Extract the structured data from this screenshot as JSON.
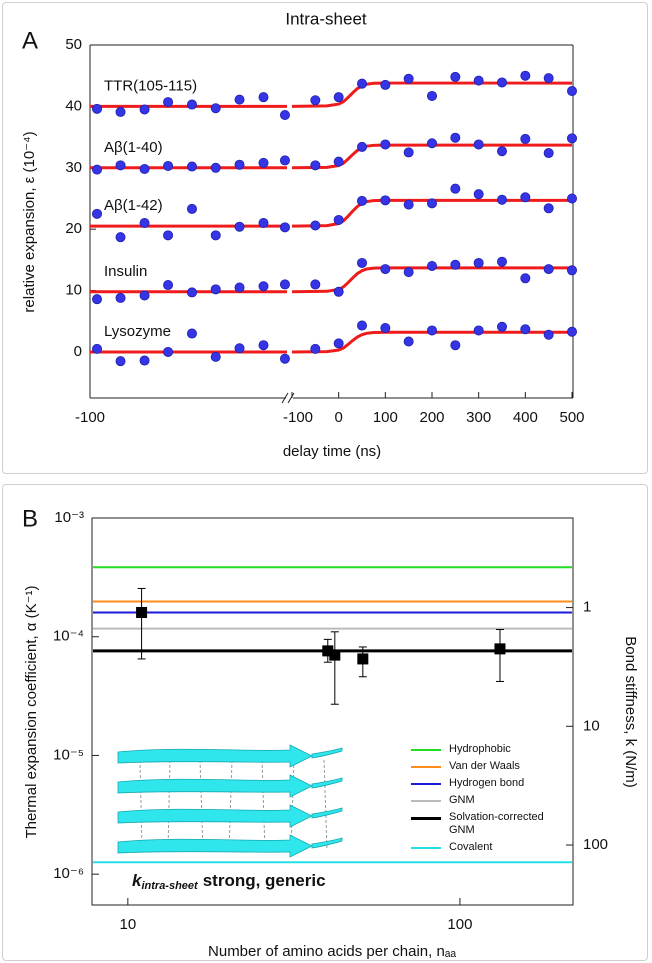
{
  "chart_data": [
    {
      "type": "broken-scatter",
      "panel": "A",
      "title": "Intra-sheet",
      "ylabel": "relative expansion, ε (10⁻⁴)",
      "xlabel": "delay time (ns)",
      "ylim": [
        -7.5,
        50
      ],
      "yticks": [
        0,
        10,
        20,
        30,
        40,
        50
      ],
      "point_color": "#3535e6",
      "fit_color": "#ee1c1c",
      "x_segments": [
        {
          "scale": "log",
          "xlim": [
            -100000,
            -10
          ],
          "xticks": [
            {
              "value": -100000,
              "label": "-100"
            }
          ],
          "x": [
            -72000,
            -24000,
            -7800,
            -2600,
            -850,
            -280,
            -92,
            -30,
            -11
          ],
          "fit_x": [
            -100000,
            -10
          ]
        },
        {
          "scale": "linear",
          "xlim": [
            -100,
            500
          ],
          "xticks": [
            -100,
            0,
            100,
            200,
            300,
            400,
            500
          ],
          "x": [
            -50,
            0,
            50,
            100,
            150,
            200,
            250,
            300,
            350,
            400,
            450,
            500
          ],
          "fit_x": [
            -100,
            -25,
            0,
            10,
            20,
            30,
            40,
            50,
            60,
            75,
            100,
            500
          ]
        }
      ],
      "series": [
        {
          "name": "TTR(105-115)",
          "values": [
            [
              39.6,
              39.1,
              39.5,
              40.7,
              40.3,
              39.7,
              41.1,
              41.5,
              38.6
            ],
            [
              41,
              41.5,
              43.7,
              43.5,
              44.5,
              41.7,
              44.8,
              44.2,
              43.9,
              45,
              44.6,
              42.5
            ]
          ],
          "fit": [
            [
              40,
              40
            ],
            [
              40,
              40.08,
              40.38,
              40.76,
              41.44,
              42.2,
              42.89,
              43.34,
              43.61,
              43.76,
              43.8,
              43.8
            ]
          ]
        },
        {
          "name": "Aβ(1-40)",
          "values": [
            [
              29.7,
              30.4,
              29.8,
              30.3,
              30.2,
              30,
              30.5,
              30.8,
              31.2
            ],
            [
              30.4,
              31,
              33.4,
              33.8,
              32.5,
              34,
              34.9,
              33.8,
              32.7,
              34.7,
              32.4,
              34.8
            ]
          ],
          "fit": [
            [
              30,
              30
            ],
            [
              30,
              30.07,
              30.37,
              30.74,
              31.41,
              32.15,
              32.81,
              33.26,
              33.52,
              33.66,
              33.7,
              33.7
            ]
          ]
        },
        {
          "name": "Aβ(1-42)",
          "values": [
            [
              22.5,
              18.7,
              21,
              19,
              23.3,
              19,
              20.4,
              21,
              20.3
            ],
            [
              20.6,
              21.5,
              24.6,
              24.7,
              24,
              24.2,
              26.6,
              25.7,
              24.8,
              25.2,
              23.4,
              25
            ]
          ],
          "fit": [
            [
              20.5,
              20.5
            ],
            [
              20.5,
              20.58,
              20.92,
              21.34,
              22.1,
              22.94,
              23.69,
              24.2,
              24.49,
              24.66,
              24.7,
              24.7
            ]
          ]
        },
        {
          "name": "Insulin",
          "values": [
            [
              8.6,
              8.8,
              9.2,
              10.9,
              9.7,
              10.2,
              10.5,
              10.7,
              11
            ],
            [
              11,
              9.8,
              14.5,
              13.5,
              13,
              14,
              14.2,
              14.5,
              14.7,
              12,
              13.5,
              13.3
            ]
          ],
          "fit": [
            [
              9.8,
              9.8
            ],
            [
              9.8,
              9.88,
              10.19,
              10.58,
              11.28,
              12.06,
              12.76,
              13.23,
              13.51,
              13.66,
              13.7,
              13.7
            ]
          ]
        },
        {
          "name": "Lysozyme",
          "values": [
            [
              0.5,
              -1.5,
              -1.4,
              0,
              3,
              -0.8,
              0.6,
              1.1,
              -1.1
            ],
            [
              0.5,
              1.4,
              4.3,
              3.9,
              1.7,
              3.5,
              1.1,
              3.5,
              4.1,
              3.7,
              2.8,
              3.3
            ]
          ],
          "fit": [
            [
              0,
              0
            ],
            [
              0,
              0.06,
              0.32,
              0.64,
              1.22,
              1.86,
              2.43,
              2.82,
              3.04,
              3.17,
              3.2,
              3.2
            ]
          ]
        }
      ]
    },
    {
      "type": "errorbar",
      "panel": "B",
      "ylabel": "Thermal expansion coefficient, α (K⁻¹)",
      "y2label": "Bond stiffness, k (N/m)",
      "xlabel": "Number of amino acids per chain, nₐₐ",
      "xscale": "log",
      "yscale": "log",
      "y2scale": "log",
      "xlim": [
        7.8,
        219
      ],
      "xticks": [
        10,
        100
      ],
      "ylim": [
        5.5e-07,
        0.001
      ],
      "yticks": [
        {
          "value": 1e-06,
          "label": "10⁻⁶"
        },
        {
          "value": 1e-05,
          "label": "10⁻⁵"
        },
        {
          "value": 0.0001,
          "label": "10⁻⁴"
        },
        {
          "value": 0.001,
          "label": "10⁻³"
        }
      ],
      "y2lim": [
        320,
        0.176
      ],
      "y2ticks": [
        1,
        10,
        100
      ],
      "legend": "lower right",
      "lines": [
        {
          "name": "Hydrophobic",
          "color": "#22dd22",
          "value": 0.000385
        },
        {
          "name": "Van der Waals",
          "color": "#ff8c1a",
          "value": 0.000198
        },
        {
          "name": "Hydrogen bond",
          "color": "#1a1ad9",
          "value": 0.00016
        },
        {
          "name": "GNM",
          "color": "#bbbbbb",
          "value": 0.000117
        },
        {
          "name": "Solvation-corrected GNM",
          "color": "#000000",
          "value": 7.6e-05
        },
        {
          "name": "Covalent",
          "color": "#22e0e8",
          "value": 1.26e-06
        }
      ],
      "points": {
        "color": "#000000",
        "x": [
          11,
          40,
          42,
          51,
          132
        ],
        "values": [
          0.00016,
          7.6e-05,
          7e-05,
          6.5e-05,
          7.9e-05
        ],
        "lower": [
          6.5e-05,
          6.1e-05,
          2.7e-05,
          4.6e-05,
          4.2e-05
        ],
        "upper": [
          0.000255,
          9.5e-05,
          0.00011,
          8.2e-05,
          0.000115
        ]
      },
      "inset": {
        "symbol": "k",
        "subscript": "intra-sheet",
        "text": "strong, generic"
      }
    }
  ]
}
